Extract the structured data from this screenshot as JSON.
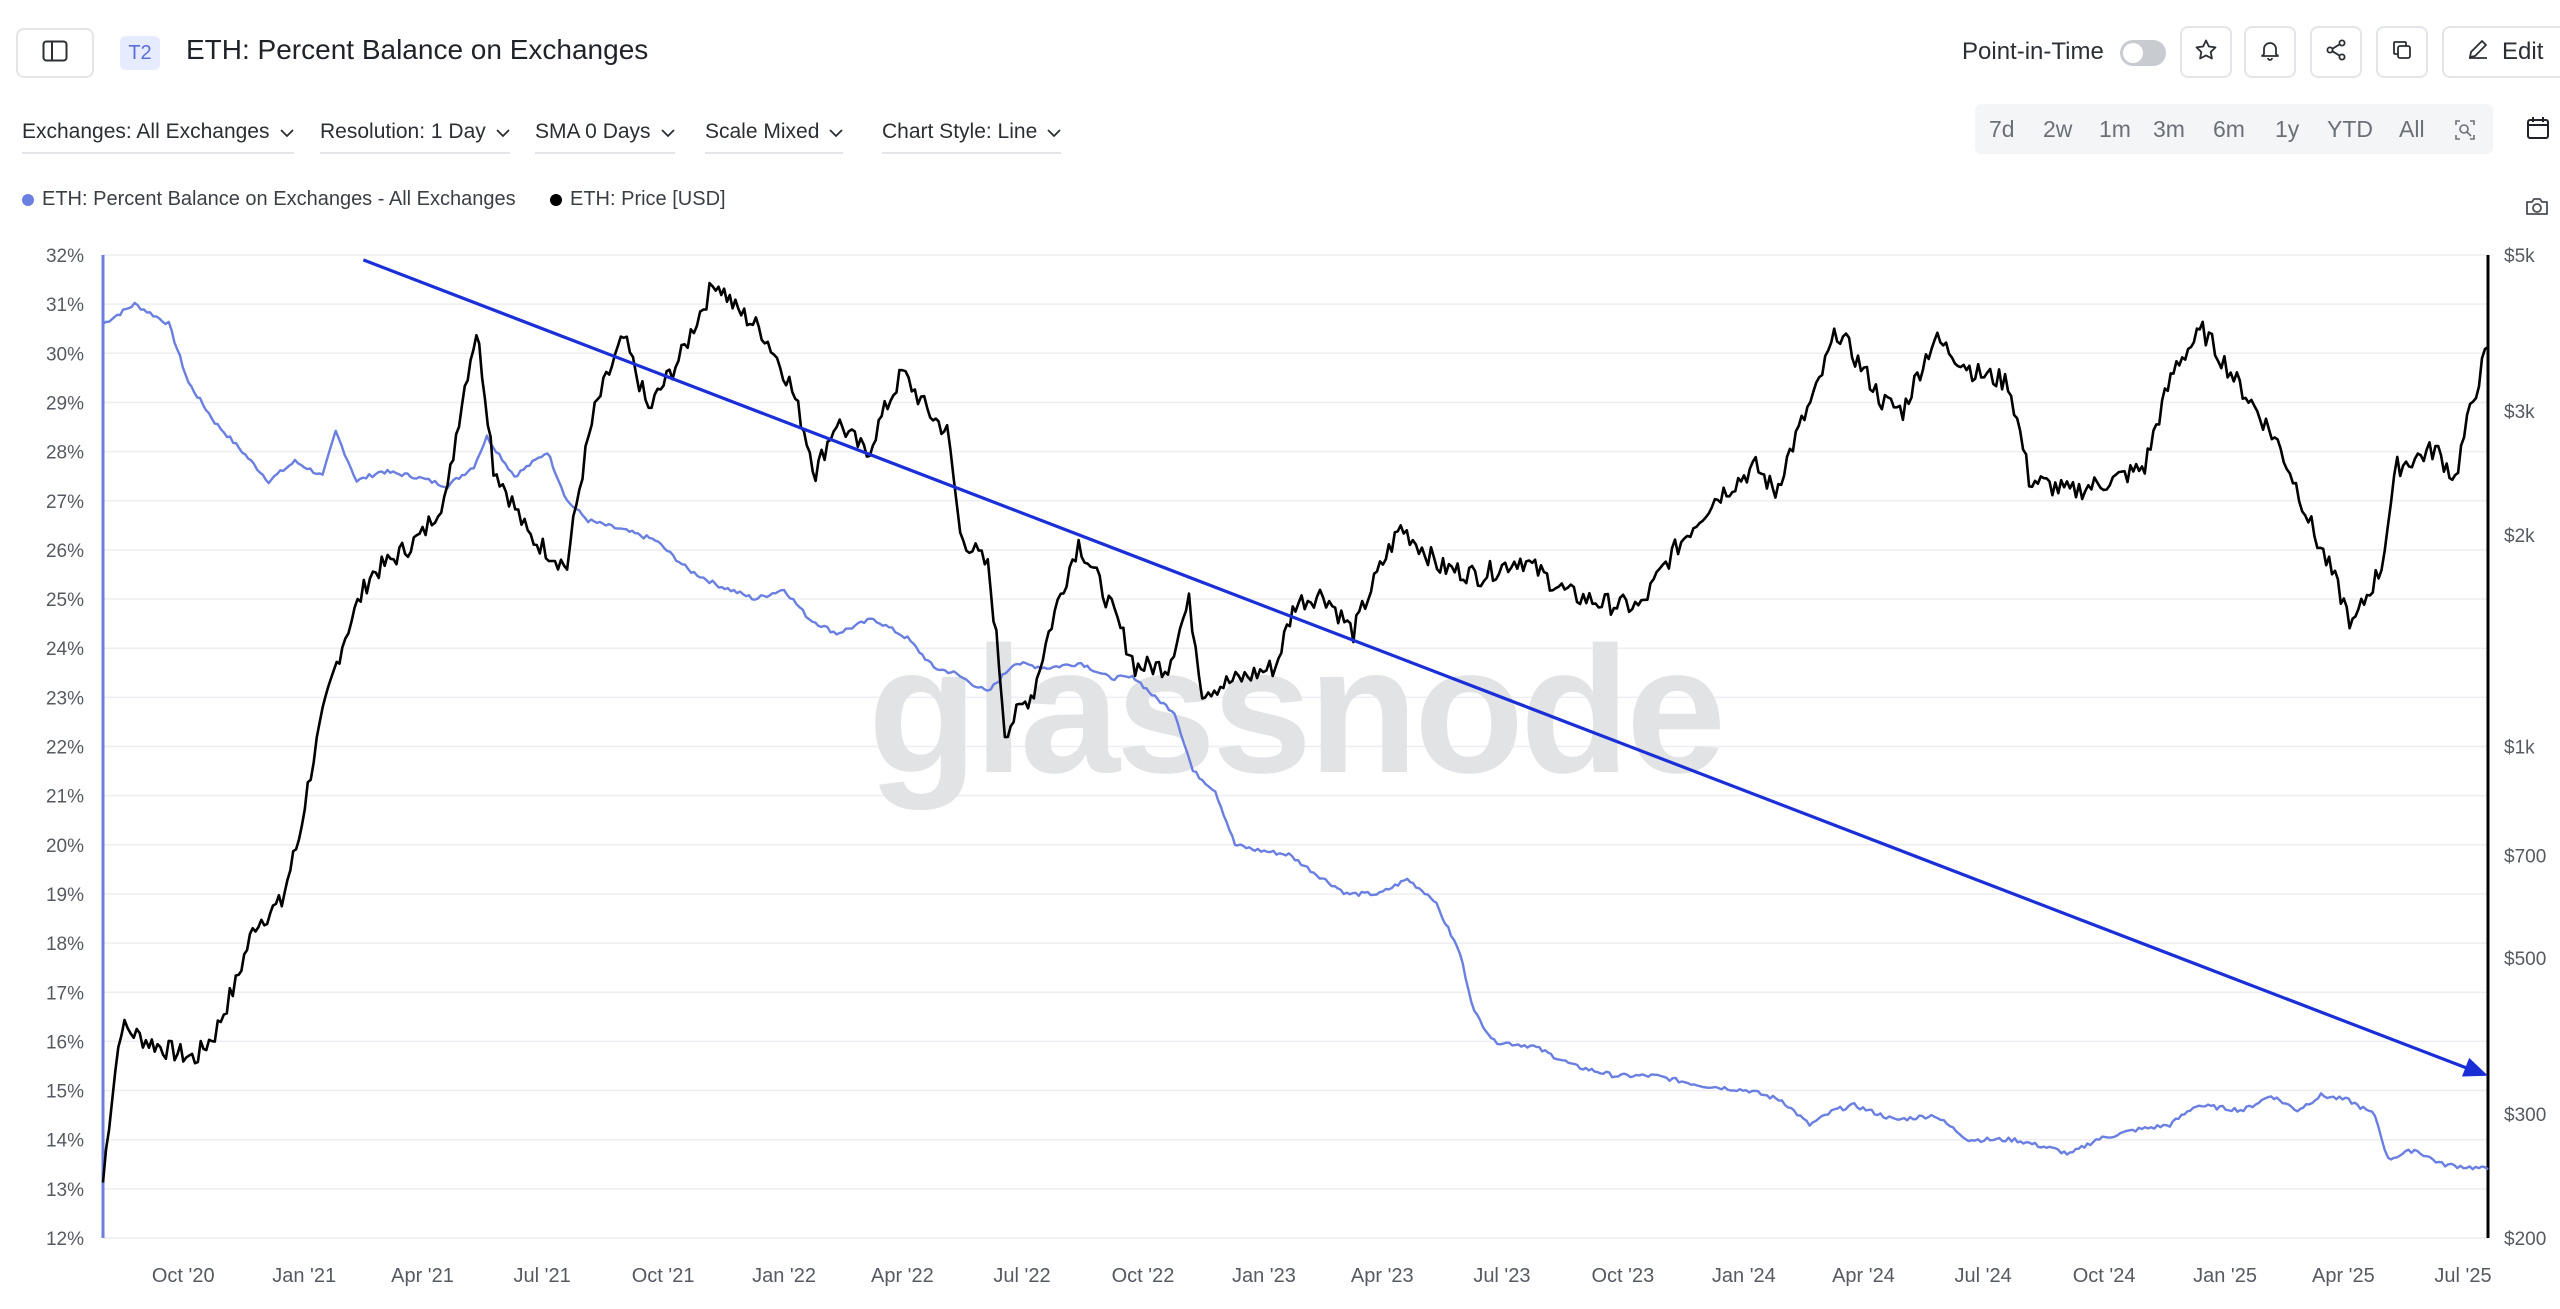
{
  "header": {
    "badge": "T2",
    "title": "ETH: Percent Balance on Exchanges",
    "point_in_time_label": "Point-in-Time",
    "edit_label": "Edit"
  },
  "controls": {
    "exchanges": "Exchanges: All Exchanges",
    "resolution": "Resolution: 1 Day",
    "sma": "SMA 0 Days",
    "scale": "Scale Mixed",
    "chart_style": "Chart Style: Line"
  },
  "ranges": [
    "7d",
    "2w",
    "1m",
    "3m",
    "6m",
    "1y",
    "YTD",
    "All"
  ],
  "colors": {
    "balance": "#6a7fe0",
    "price": "#000000",
    "trend_arrow": "#1a2fd6",
    "left_axis": "#6a7fe0",
    "right_axis": "#000000",
    "watermark": "#e2e3e5"
  },
  "icons": [
    "sidebar-toggle-icon",
    "star-icon",
    "bell-icon",
    "share-icon",
    "copy-icon",
    "pencil-icon",
    "chevron-down-icon",
    "zoom-icon",
    "calendar-icon",
    "camera-icon"
  ],
  "watermark": "glassnode",
  "chart_data": {
    "type": "line",
    "title": "ETH: Percent Balance on Exchanges",
    "legend_placement": "top-left",
    "grid": true,
    "x_ticks": [
      "Oct '20",
      "Jan '21",
      "Apr '21",
      "Jul '21",
      "Oct '21",
      "Jan '22",
      "Apr '22",
      "Jul '22",
      "Oct '22",
      "Jan '23",
      "Apr '23",
      "Jul '23",
      "Oct '23",
      "Jan '24",
      "Apr '24",
      "Jul '24",
      "Oct '24",
      "Jan '25",
      "Apr '25",
      "Jul '25"
    ],
    "x_range": [
      "2020-08-01",
      "2025-07-20"
    ],
    "y_left": {
      "ticks": [
        "32%",
        "31%",
        "30%",
        "29%",
        "28%",
        "27%",
        "26%",
        "25%",
        "24%",
        "23%",
        "22%",
        "21%",
        "20%",
        "19%",
        "18%",
        "17%",
        "16%",
        "15%",
        "14%",
        "13%",
        "12%"
      ],
      "range": [
        12,
        32
      ],
      "unit": "%"
    },
    "y_right": {
      "scale": "log",
      "ticks": [
        "$5k",
        "$3k",
        "$2k",
        "$1k",
        "$700",
        "$500",
        "$300",
        "$200"
      ],
      "tick_values": [
        5000,
        3000,
        2000,
        1000,
        700,
        500,
        300,
        200
      ],
      "range": [
        200,
        5000
      ]
    },
    "series": [
      {
        "name": "ETH: Percent Balance on Exchanges - All Exchanges",
        "axis": "left",
        "points": [
          [
            "2020-08-01",
            30.6
          ],
          [
            "2020-08-25",
            31.0
          ],
          [
            "2020-09-20",
            30.6
          ],
          [
            "2020-10-05",
            29.4
          ],
          [
            "2020-10-25",
            28.6
          ],
          [
            "2020-11-15",
            28.0
          ],
          [
            "2020-12-05",
            27.4
          ],
          [
            "2020-12-25",
            27.8
          ],
          [
            "2021-01-15",
            27.5
          ],
          [
            "2021-01-25",
            28.4
          ],
          [
            "2021-02-10",
            27.4
          ],
          [
            "2021-03-01",
            27.6
          ],
          [
            "2021-03-25",
            27.5
          ],
          [
            "2021-04-20",
            27.3
          ],
          [
            "2021-05-10",
            27.7
          ],
          [
            "2021-05-20",
            28.3
          ],
          [
            "2021-06-10",
            27.5
          ],
          [
            "2021-07-05",
            28.0
          ],
          [
            "2021-07-20",
            27.0
          ],
          [
            "2021-08-05",
            26.6
          ],
          [
            "2021-09-01",
            26.4
          ],
          [
            "2021-09-25",
            26.2
          ],
          [
            "2021-10-20",
            25.6
          ],
          [
            "2021-11-10",
            25.3
          ],
          [
            "2021-12-10",
            25.0
          ],
          [
            "2022-01-01",
            25.2
          ],
          [
            "2022-01-20",
            24.6
          ],
          [
            "2022-02-10",
            24.3
          ],
          [
            "2022-03-10",
            24.6
          ],
          [
            "2022-04-05",
            24.2
          ],
          [
            "2022-04-25",
            23.6
          ],
          [
            "2022-05-10",
            23.5
          ],
          [
            "2022-06-05",
            23.1
          ],
          [
            "2022-06-25",
            23.7
          ],
          [
            "2022-07-20",
            23.6
          ],
          [
            "2022-08-15",
            23.7
          ],
          [
            "2022-09-05",
            23.4
          ],
          [
            "2022-09-25",
            23.4
          ],
          [
            "2022-10-10",
            23.0
          ],
          [
            "2022-10-25",
            22.7
          ],
          [
            "2022-11-08",
            21.5
          ],
          [
            "2022-11-25",
            21.1
          ],
          [
            "2022-12-10",
            20.0
          ],
          [
            "2022-12-25",
            19.9
          ],
          [
            "2023-01-20",
            19.8
          ],
          [
            "2023-02-10",
            19.4
          ],
          [
            "2023-03-05",
            19.0
          ],
          [
            "2023-03-30",
            19.0
          ],
          [
            "2023-04-20",
            19.3
          ],
          [
            "2023-05-10",
            18.9
          ],
          [
            "2023-05-30",
            17.8
          ],
          [
            "2023-06-10",
            16.6
          ],
          [
            "2023-06-25",
            16.0
          ],
          [
            "2023-07-25",
            15.9
          ],
          [
            "2023-08-25",
            15.5
          ],
          [
            "2023-09-25",
            15.3
          ],
          [
            "2023-10-25",
            15.3
          ],
          [
            "2023-12-01",
            15.1
          ],
          [
            "2024-01-05",
            15.0
          ],
          [
            "2024-01-30",
            14.8
          ],
          [
            "2024-02-20",
            14.3
          ],
          [
            "2024-03-10",
            14.6
          ],
          [
            "2024-03-25",
            14.7
          ],
          [
            "2024-04-25",
            14.4
          ],
          [
            "2024-05-25",
            14.5
          ],
          [
            "2024-06-20",
            14.0
          ],
          [
            "2024-07-25",
            14.0
          ],
          [
            "2024-08-25",
            13.8
          ],
          [
            "2024-09-05",
            13.7
          ],
          [
            "2024-09-25",
            14.0
          ],
          [
            "2024-10-25",
            14.2
          ],
          [
            "2024-11-20",
            14.3
          ],
          [
            "2024-12-10",
            14.7
          ],
          [
            "2025-01-15",
            14.6
          ],
          [
            "2025-02-05",
            14.9
          ],
          [
            "2025-02-25",
            14.6
          ],
          [
            "2025-03-15",
            14.9
          ],
          [
            "2025-04-05",
            14.8
          ],
          [
            "2025-04-25",
            14.5
          ],
          [
            "2025-05-05",
            13.6
          ],
          [
            "2025-05-25",
            13.8
          ],
          [
            "2025-06-15",
            13.5
          ],
          [
            "2025-07-20",
            13.4
          ]
        ]
      },
      {
        "name": "ETH: Price [USD]",
        "axis": "right",
        "points": [
          [
            "2020-08-01",
            240
          ],
          [
            "2020-08-15",
            400
          ],
          [
            "2020-09-05",
            380
          ],
          [
            "2020-09-20",
            370
          ],
          [
            "2020-10-10",
            360
          ],
          [
            "2020-10-25",
            390
          ],
          [
            "2020-11-10",
            460
          ],
          [
            "2020-11-25",
            560
          ],
          [
            "2020-12-15",
            600
          ],
          [
            "2020-12-28",
            740
          ],
          [
            "2021-01-15",
            1100
          ],
          [
            "2021-01-30",
            1400
          ],
          [
            "2021-02-20",
            1750
          ],
          [
            "2021-03-10",
            1850
          ],
          [
            "2021-04-01",
            2000
          ],
          [
            "2021-04-20",
            2300
          ],
          [
            "2021-05-12",
            3900
          ],
          [
            "2021-05-25",
            2500
          ],
          [
            "2021-06-20",
            2000
          ],
          [
            "2021-07-20",
            1800
          ],
          [
            "2021-08-10",
            3000
          ],
          [
            "2021-09-01",
            3800
          ],
          [
            "2021-09-20",
            3000
          ],
          [
            "2021-10-15",
            3600
          ],
          [
            "2021-11-10",
            4600
          ],
          [
            "2021-11-25",
            4200
          ],
          [
            "2021-12-15",
            3900
          ],
          [
            "2022-01-05",
            3300
          ],
          [
            "2022-01-25",
            2450
          ],
          [
            "2022-02-10",
            2900
          ],
          [
            "2022-03-05",
            2600
          ],
          [
            "2022-04-01",
            3400
          ],
          [
            "2022-04-20",
            3000
          ],
          [
            "2022-05-05",
            2800
          ],
          [
            "2022-05-15",
            2000
          ],
          [
            "2022-06-05",
            1800
          ],
          [
            "2022-06-18",
            1050
          ],
          [
            "2022-07-10",
            1200
          ],
          [
            "2022-08-13",
            1950
          ],
          [
            "2022-09-05",
            1600
          ],
          [
            "2022-09-25",
            1300
          ],
          [
            "2022-10-20",
            1300
          ],
          [
            "2022-11-05",
            1600
          ],
          [
            "2022-11-15",
            1200
          ],
          [
            "2022-12-15",
            1250
          ],
          [
            "2023-01-10",
            1300
          ],
          [
            "2023-01-25",
            1600
          ],
          [
            "2023-02-15",
            1650
          ],
          [
            "2023-03-10",
            1450
          ],
          [
            "2023-04-15",
            2050
          ],
          [
            "2023-05-15",
            1800
          ],
          [
            "2023-06-15",
            1750
          ],
          [
            "2023-07-15",
            1850
          ],
          [
            "2023-08-20",
            1650
          ],
          [
            "2023-09-15",
            1600
          ],
          [
            "2023-10-15",
            1580
          ],
          [
            "2023-11-05",
            1850
          ],
          [
            "2023-12-10",
            2250
          ],
          [
            "2024-01-10",
            2500
          ],
          [
            "2024-01-25",
            2300
          ],
          [
            "2024-02-25",
            3200
          ],
          [
            "2024-03-12",
            3900
          ],
          [
            "2024-04-15",
            3100
          ],
          [
            "2024-05-01",
            3000
          ],
          [
            "2024-05-25",
            3800
          ],
          [
            "2024-06-25",
            3400
          ],
          [
            "2024-07-20",
            3300
          ],
          [
            "2024-08-05",
            2400
          ],
          [
            "2024-09-05",
            2300
          ],
          [
            "2024-10-10",
            2400
          ],
          [
            "2024-11-01",
            2500
          ],
          [
            "2024-11-25",
            3500
          ],
          [
            "2024-12-15",
            3900
          ],
          [
            "2025-01-10",
            3300
          ],
          [
            "2025-02-10",
            2700
          ],
          [
            "2025-03-10",
            2000
          ],
          [
            "2025-04-08",
            1480
          ],
          [
            "2025-04-30",
            1800
          ],
          [
            "2025-05-12",
            2500
          ],
          [
            "2025-06-10",
            2650
          ],
          [
            "2025-06-25",
            2400
          ],
          [
            "2025-07-20",
            3700
          ]
        ]
      }
    ],
    "annotations": [
      {
        "type": "arrow",
        "from": [
          "2021-02-15",
          31.9
        ],
        "to": [
          "2025-07-20",
          15.3
        ]
      }
    ]
  }
}
